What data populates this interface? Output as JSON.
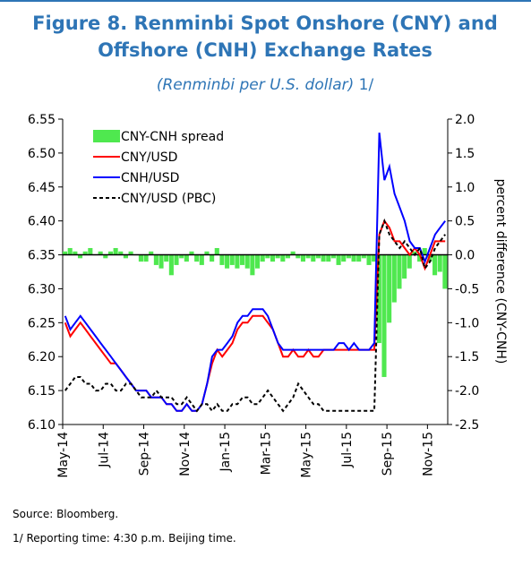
{
  "chart_data": {
    "type": "line",
    "title": "Figure 8. Renminbi Spot Onshore (CNY) and Offshore (CNH) Exchange Rates",
    "subtitle": "(Renminbi per U.S. dollar)",
    "note_ref": "1/",
    "y2_label": "percent difference (CNY-CNH)",
    "source": "Source: Bloomberg.",
    "footnote": "1/ Reporting time: 4:30 p.m. Beijing time.",
    "categories": [
      "May-14",
      null,
      null,
      null,
      null,
      null,
      null,
      null,
      "Jul-14",
      null,
      null,
      null,
      null,
      null,
      null,
      null,
      "Sep-14",
      null,
      null,
      null,
      null,
      null,
      null,
      null,
      "Nov-14",
      null,
      null,
      null,
      null,
      null,
      null,
      null,
      "Jan-15",
      null,
      null,
      null,
      null,
      null,
      null,
      null,
      "Mar-15",
      null,
      null,
      null,
      null,
      null,
      null,
      null,
      "May-15",
      null,
      null,
      null,
      null,
      null,
      null,
      null,
      "Jul-15",
      null,
      null,
      null,
      null,
      null,
      null,
      null,
      "Sep-15",
      null,
      null,
      null,
      null,
      null,
      null,
      null,
      "Nov-15",
      null,
      null,
      null
    ],
    "ylim": [
      6.1,
      6.55
    ],
    "yticks": [
      {
        "value": 6.1,
        "label": "6.10"
      },
      6.15,
      {
        "value": 6.2,
        "label": "6.20"
      },
      6.25,
      {
        "value": 6.3,
        "label": "6.30"
      },
      6.35,
      {
        "value": 6.4,
        "label": "6.40"
      },
      6.45,
      {
        "value": 6.5,
        "label": "6.50"
      },
      6.55
    ],
    "y2lim": [
      -2.5,
      2.0
    ],
    "y2ticks": [
      -2.5,
      {
        "value": -2,
        "label": "-2.0"
      },
      -1.5,
      {
        "value": -1,
        "label": "-1.0"
      },
      -0.5,
      {
        "value": 0,
        "label": "0.0"
      },
      0.5,
      {
        "value": 1,
        "label": "1.0"
      },
      1.5,
      {
        "value": 2,
        "label": "2.0"
      }
    ],
    "series": [
      {
        "name": "CNY-CNH spread",
        "type": "bar",
        "axis": "y2",
        "color": "#4fe84f",
        "values": [
          0.05,
          0.1,
          0.05,
          -0.05,
          0.05,
          0.1,
          0.0,
          0.05,
          -0.05,
          0.05,
          0.1,
          0.05,
          -0.05,
          0.05,
          0.0,
          -0.1,
          -0.1,
          0.05,
          -0.15,
          -0.2,
          -0.1,
          -0.3,
          -0.15,
          -0.05,
          -0.1,
          0.05,
          -0.1,
          -0.15,
          0.05,
          -0.1,
          0.1,
          -0.15,
          -0.2,
          -0.15,
          -0.2,
          -0.15,
          -0.2,
          -0.3,
          -0.2,
          -0.1,
          -0.05,
          -0.1,
          -0.05,
          -0.1,
          -0.05,
          0.05,
          -0.05,
          -0.1,
          -0.05,
          -0.1,
          -0.05,
          -0.1,
          -0.1,
          -0.05,
          -0.15,
          -0.1,
          -0.05,
          -0.1,
          -0.1,
          -0.05,
          -0.15,
          -0.1,
          -1.3,
          -1.8,
          -1.0,
          -0.7,
          -0.5,
          -0.35,
          -0.2,
          0.05,
          -0.1,
          0.1,
          -0.1,
          -0.3,
          -0.25,
          -0.5
        ]
      },
      {
        "name": "CNY/USD",
        "color": "#ff0000",
        "values": [
          6.25,
          6.23,
          6.24,
          6.25,
          6.24,
          6.23,
          6.22,
          6.21,
          6.2,
          6.19,
          6.19,
          6.18,
          6.17,
          6.16,
          6.15,
          6.15,
          6.15,
          6.14,
          6.14,
          6.14,
          6.13,
          6.13,
          6.12,
          6.12,
          6.13,
          6.12,
          6.12,
          6.13,
          6.16,
          6.19,
          6.21,
          6.2,
          6.21,
          6.22,
          6.24,
          6.25,
          6.25,
          6.26,
          6.26,
          6.26,
          6.25,
          6.24,
          6.22,
          6.2,
          6.2,
          6.21,
          6.2,
          6.2,
          6.21,
          6.2,
          6.2,
          6.21,
          6.21,
          6.21,
          6.21,
          6.21,
          6.21,
          6.21,
          6.21,
          6.21,
          6.21,
          6.21,
          6.38,
          6.4,
          6.39,
          6.37,
          6.37,
          6.36,
          6.35,
          6.36,
          6.35,
          6.33,
          6.35,
          6.37,
          6.37,
          6.37
        ]
      },
      {
        "name": "CNH/USD",
        "color": "#0000ff",
        "values": [
          6.26,
          6.24,
          6.25,
          6.26,
          6.25,
          6.24,
          6.23,
          6.22,
          6.21,
          6.2,
          6.19,
          6.18,
          6.17,
          6.16,
          6.15,
          6.15,
          6.15,
          6.14,
          6.14,
          6.14,
          6.13,
          6.13,
          6.12,
          6.12,
          6.13,
          6.12,
          6.12,
          6.13,
          6.16,
          6.2,
          6.21,
          6.21,
          6.22,
          6.23,
          6.25,
          6.26,
          6.26,
          6.27,
          6.27,
          6.27,
          6.26,
          6.24,
          6.22,
          6.21,
          6.21,
          6.21,
          6.21,
          6.21,
          6.21,
          6.21,
          6.21,
          6.21,
          6.21,
          6.21,
          6.22,
          6.22,
          6.21,
          6.22,
          6.21,
          6.21,
          6.21,
          6.22,
          6.53,
          6.46,
          6.48,
          6.44,
          6.42,
          6.4,
          6.37,
          6.36,
          6.36,
          6.34,
          6.36,
          6.38,
          6.39,
          6.4
        ]
      },
      {
        "name": "CNY/USD (PBC)",
        "color": "#000000",
        "dashed": true,
        "values": [
          6.15,
          6.16,
          6.17,
          6.17,
          6.16,
          6.16,
          6.15,
          6.15,
          6.16,
          6.16,
          6.15,
          6.15,
          6.16,
          6.16,
          6.15,
          6.14,
          6.14,
          6.14,
          6.15,
          6.14,
          6.14,
          6.14,
          6.13,
          6.13,
          6.14,
          6.13,
          6.12,
          6.13,
          6.13,
          6.12,
          6.13,
          6.12,
          6.12,
          6.13,
          6.13,
          6.14,
          6.14,
          6.13,
          6.13,
          6.14,
          6.15,
          6.14,
          6.13,
          6.12,
          6.13,
          6.14,
          6.16,
          6.15,
          6.14,
          6.13,
          6.13,
          6.12,
          6.12,
          6.12,
          6.12,
          6.12,
          6.12,
          6.12,
          6.12,
          6.12,
          6.12,
          6.12,
          6.38,
          6.4,
          6.38,
          6.37,
          6.36,
          6.37,
          6.36,
          6.35,
          6.36,
          6.33,
          6.34,
          6.36,
          6.37,
          6.38
        ]
      }
    ]
  }
}
